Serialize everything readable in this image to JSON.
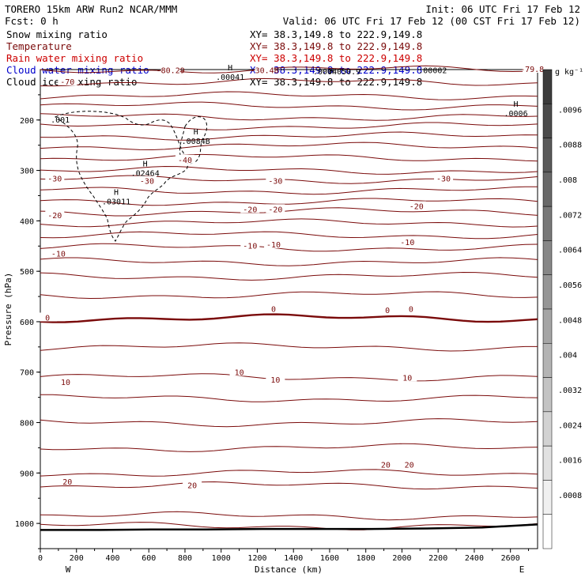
{
  "header": {
    "line1_left": "TORERO  15km ARW    Run2      NCAR/MMM",
    "line1_right": "Init: 06 UTC Fri 17 Feb 12",
    "line2_left": "Fcst:    0 h",
    "line2_right": "Valid: 06 UTC Fri 17 Feb 12 (00 CST Fri 17 Feb 12)"
  },
  "colors": {
    "snow": "#000000",
    "temperature": "#7a0a0a",
    "rain": "#cc0000",
    "cloud_water": "#0000cc",
    "cloud_ice": "#000000",
    "terrain": "#000000"
  },
  "legend": [
    {
      "name": "Snow mixing ratio",
      "xy": "XY=  38.3,149.8 to 222.9,149.8",
      "color_key": "snow"
    },
    {
      "name": "Temperature",
      "xy": "XY=  38.3,149.8 to 222.9,149.8",
      "color_key": "temperature"
    },
    {
      "name": "Rain water mixing ratio",
      "xy": "XY=  38.3,149.8 to 222.9,149.8",
      "color_key": "rain"
    },
    {
      "name": "Cloud water mixing ratio",
      "xy": "XY=  38.3,149.8 to 222.9,149.8",
      "color_key": "cloud_water"
    },
    {
      "name": "Cloud ice mixing ratio",
      "xy": "XY=  38.3,149.8 to 222.9,149.8",
      "color_key": "cloud_ice"
    }
  ],
  "chart_data": {
    "type": "cross-section contour",
    "xlabel": "Distance (km)",
    "ylabel": "Pressure (hPa)",
    "xlim": [
      0,
      2750
    ],
    "ylim": [
      1050,
      100
    ],
    "x_ticks": [
      0,
      200,
      400,
      600,
      800,
      1000,
      1200,
      1400,
      1600,
      1800,
      2000,
      2200,
      2400,
      2600
    ],
    "y_ticks": [
      200,
      300,
      400,
      500,
      600,
      700,
      800,
      900,
      1000
    ],
    "x_end_labels": {
      "left": "W",
      "right": "E"
    },
    "colorbar": {
      "unit": "g kg⁻¹",
      "ticks": [
        ".0096",
        ".0088",
        ".008",
        ".0072",
        ".0064",
        ".0056",
        ".0048",
        ".004",
        ".0032",
        ".0024",
        ".0016",
        ".0008"
      ]
    },
    "isotherm_labels": [
      {
        "text": "-70",
        "x": 150,
        "p": 125
      },
      {
        "text": "-80.29",
        "x": 720,
        "p": 102
      },
      {
        "text": "-30.48",
        "x": 1240,
        "p": 102
      },
      {
        "text": "-79.8",
        "x": 2720,
        "p": 100
      },
      {
        "text": "-30",
        "x": 80,
        "p": 317
      },
      {
        "text": "-30",
        "x": 590,
        "p": 322
      },
      {
        "text": "-30",
        "x": 1300,
        "p": 322
      },
      {
        "text": "-30",
        "x": 2230,
        "p": 317
      },
      {
        "text": "-40",
        "x": 800,
        "p": 280
      },
      {
        "text": "-20",
        "x": 80,
        "p": 390
      },
      {
        "text": "-20",
        "x": 1160,
        "p": 378
      },
      {
        "text": "-20",
        "x": 1300,
        "p": 378
      },
      {
        "text": "-20",
        "x": 2080,
        "p": 372
      },
      {
        "text": "-10",
        "x": 100,
        "p": 466
      },
      {
        "text": "-10",
        "x": 1160,
        "p": 450
      },
      {
        "text": "-10",
        "x": 1290,
        "p": 448
      },
      {
        "text": "-10",
        "x": 2030,
        "p": 443
      },
      {
        "text": "0",
        "x": 40,
        "p": 593
      },
      {
        "text": "0",
        "x": 1290,
        "p": 576
      },
      {
        "text": "0",
        "x": 1920,
        "p": 578
      },
      {
        "text": "0",
        "x": 2050,
        "p": 576
      },
      {
        "text": "10",
        "x": 140,
        "p": 721
      },
      {
        "text": "10",
        "x": 1100,
        "p": 701
      },
      {
        "text": "10",
        "x": 1300,
        "p": 716
      },
      {
        "text": "10",
        "x": 2030,
        "p": 712
      },
      {
        "text": "20",
        "x": 150,
        "p": 918
      },
      {
        "text": "20",
        "x": 840,
        "p": 925
      },
      {
        "text": "20",
        "x": 1910,
        "p": 885
      },
      {
        "text": "20",
        "x": 2040,
        "p": 885
      }
    ],
    "extrema_labels": [
      {
        "mark": "H",
        "value": ".00041",
        "x": 1050,
        "p": 108
      },
      {
        "mark": "H",
        "value": ".0084B",
        "x": 860,
        "p": 235
      },
      {
        "mark": "H",
        "value": ".02464",
        "x": 580,
        "p": 298
      },
      {
        "mark": "H",
        "value": ".03011",
        "x": 420,
        "p": 355
      },
      {
        "mark": "H",
        "value": ".0006",
        "x": 2630,
        "p": 180
      }
    ],
    "field_labels": [
      {
        "text": ".001",
        "x": 110,
        "p": 200
      },
      {
        "text": "H",
        "x": 1610,
        "p": 104
      },
      {
        "text": ".0004050.9",
        "x": 1640,
        "p": 105
      },
      {
        "text": ".00002",
        "x": 2170,
        "p": 102
      }
    ],
    "isotherm_levels": [
      100,
      125,
      152,
      172,
      194,
      212,
      232,
      252,
      275,
      300,
      318,
      340,
      362,
      382,
      404,
      428,
      453,
      481,
      510,
      547,
      593,
      650,
      710,
      752,
      800,
      850,
      900,
      925,
      985,
      1005
    ],
    "terrain_p": [
      1013,
      1013,
      1012,
      1012,
      1011,
      1011,
      1011,
      1010,
      1008,
      1002
    ]
  }
}
